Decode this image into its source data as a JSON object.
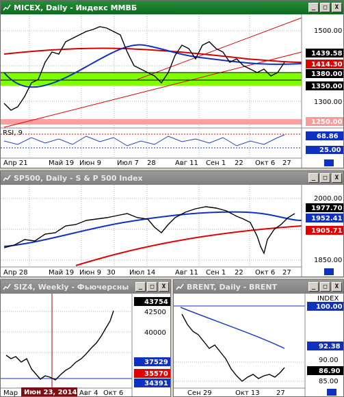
{
  "windows": [
    {
      "title": "MICEX, Daily - Индекс ММВБ",
      "price_labels": [
        "1500.00",
        "1439.58",
        "1414.30",
        "1380.00",
        "1350.00",
        "1300.00",
        "1250.00"
      ],
      "rsi_label": "RSI, 9",
      "rsi_values": [
        "68.86",
        "25.00"
      ],
      "dates": [
        "Апр 21",
        "Май 19",
        "Июн 9",
        "Июл 7",
        "28",
        "Авг 11",
        "Сен 1",
        "22",
        "Окт 6",
        "27"
      ]
    },
    {
      "title": "SP500, Daily - S & P 500 Index",
      "price_labels": [
        "2000.00",
        "1977.70",
        "1952.41",
        "1905.71",
        "1850.00"
      ],
      "dates": [
        "Апр 28",
        "Май 19",
        "Июн 9",
        "30",
        "Июл 14",
        "Авг 11",
        "Сен 1",
        "22",
        "Окт 6",
        "27"
      ]
    },
    {
      "title": "SIZ4, Weekly - Фьючерсны",
      "price_labels": [
        "43754",
        "42500",
        "40000",
        "37529",
        "35570",
        "34391"
      ],
      "dates": [
        "Мар",
        "Авг 4",
        "Окт 6"
      ],
      "crosshair_label": "Июн 23, 2014"
    },
    {
      "title": "BRENT, Daily - BRENT",
      "price_labels": [
        "INDEX",
        "100.00",
        "92.38",
        "90.00",
        "86.90",
        "85.00"
      ],
      "dates": [
        "Сен 29",
        "Окт 13",
        "27"
      ]
    }
  ],
  "buttons": {
    "minimize": "_",
    "maximize": "□",
    "close": "X"
  },
  "colors": {
    "active_title": "#1a7a2c",
    "inactive_title": "#8c8c8c",
    "green_zone": "#80ff00",
    "pink_zone": "#ffa0a0"
  }
}
